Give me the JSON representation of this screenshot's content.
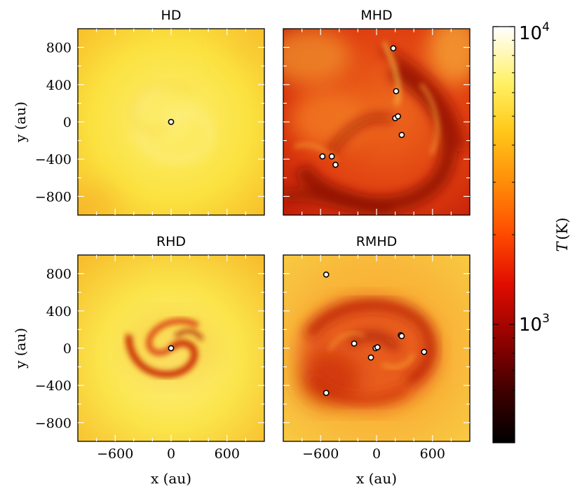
{
  "chart_data": [
    {
      "type": "heatmap",
      "title": "HD",
      "xlabel": "",
      "ylabel": "y (au)",
      "xlim": [
        -1000,
        1000
      ],
      "ylim": [
        -1000,
        1000
      ],
      "structure": "smooth",
      "sinks": [
        [
          0,
          0
        ]
      ]
    },
    {
      "type": "heatmap",
      "title": "MHD",
      "xlabel": "",
      "ylabel": "",
      "xlim": [
        -1000,
        1000
      ],
      "ylim": [
        -1000,
        1000
      ],
      "structure": "turbulent",
      "sinks": [
        [
          180,
          790
        ],
        [
          210,
          330
        ],
        [
          200,
          40
        ],
        [
          230,
          60
        ],
        [
          270,
          -140
        ],
        [
          -580,
          -370
        ],
        [
          -480,
          -370
        ],
        [
          -440,
          -460
        ]
      ]
    },
    {
      "type": "heatmap",
      "title": "RHD",
      "xlabel": "x (au)",
      "ylabel": "y (au)",
      "xlim": [
        -1000,
        1000
      ],
      "ylim": [
        -1000,
        1000
      ],
      "structure": "compact-spiral",
      "sinks": [
        [
          0,
          0
        ]
      ]
    },
    {
      "type": "heatmap",
      "title": "RMHD",
      "xlabel": "x (au)",
      "ylabel": "",
      "xlim": [
        -1000,
        1000
      ],
      "ylim": [
        -1000,
        1000
      ],
      "structure": "extended-disk",
      "sinks": [
        [
          -540,
          790
        ],
        [
          -240,
          50
        ],
        [
          -10,
          0
        ],
        [
          10,
          10
        ],
        [
          -60,
          -100
        ],
        [
          260,
          140
        ],
        [
          270,
          130
        ],
        [
          510,
          -40
        ],
        [
          -540,
          -480
        ]
      ]
    }
  ],
  "shared": {
    "x_ticks": [
      -600,
      0,
      600
    ],
    "x_tick_labels": [
      "−600",
      "0",
      "600"
    ],
    "y_ticks": [
      800,
      400,
      0,
      -400,
      -800
    ],
    "y_tick_labels": [
      "800",
      "400",
      "0",
      "−400",
      "−800"
    ],
    "xlabel_left": "x (au)",
    "xlabel_right": "x (au)",
    "ylabel_top": "y (au)",
    "ylabel_bottom": "y (au)"
  },
  "colorbar": {
    "label": "T (K)",
    "label_var": "T",
    "label_unit": "(K)",
    "scale": "log",
    "range": [
      400,
      10000
    ],
    "major_ticks": [
      {
        "value": 10000,
        "base": "10",
        "exp": "4"
      },
      {
        "value": 1000,
        "base": "10",
        "exp": "3"
      }
    ],
    "minor_ticks": [
      500,
      600,
      700,
      800,
      900,
      2000,
      3000,
      4000,
      5000,
      6000,
      7000,
      8000,
      9000
    ],
    "colormap": "afmhot",
    "colors": {
      "low": "#000000",
      "dark_red": "#7f0000",
      "red": "#ff0000",
      "orange": "#ff8000",
      "yellow": "#ffff00",
      "high": "#ffffff"
    }
  },
  "colors": {
    "hd_bg": "#fbe442",
    "mhd_bg": "#e34b14",
    "rhd_bg": "#fbe345",
    "rmhd_bg": "#f8a32e",
    "sink_fill": "#ffffff",
    "sink_stroke": "#000000"
  }
}
